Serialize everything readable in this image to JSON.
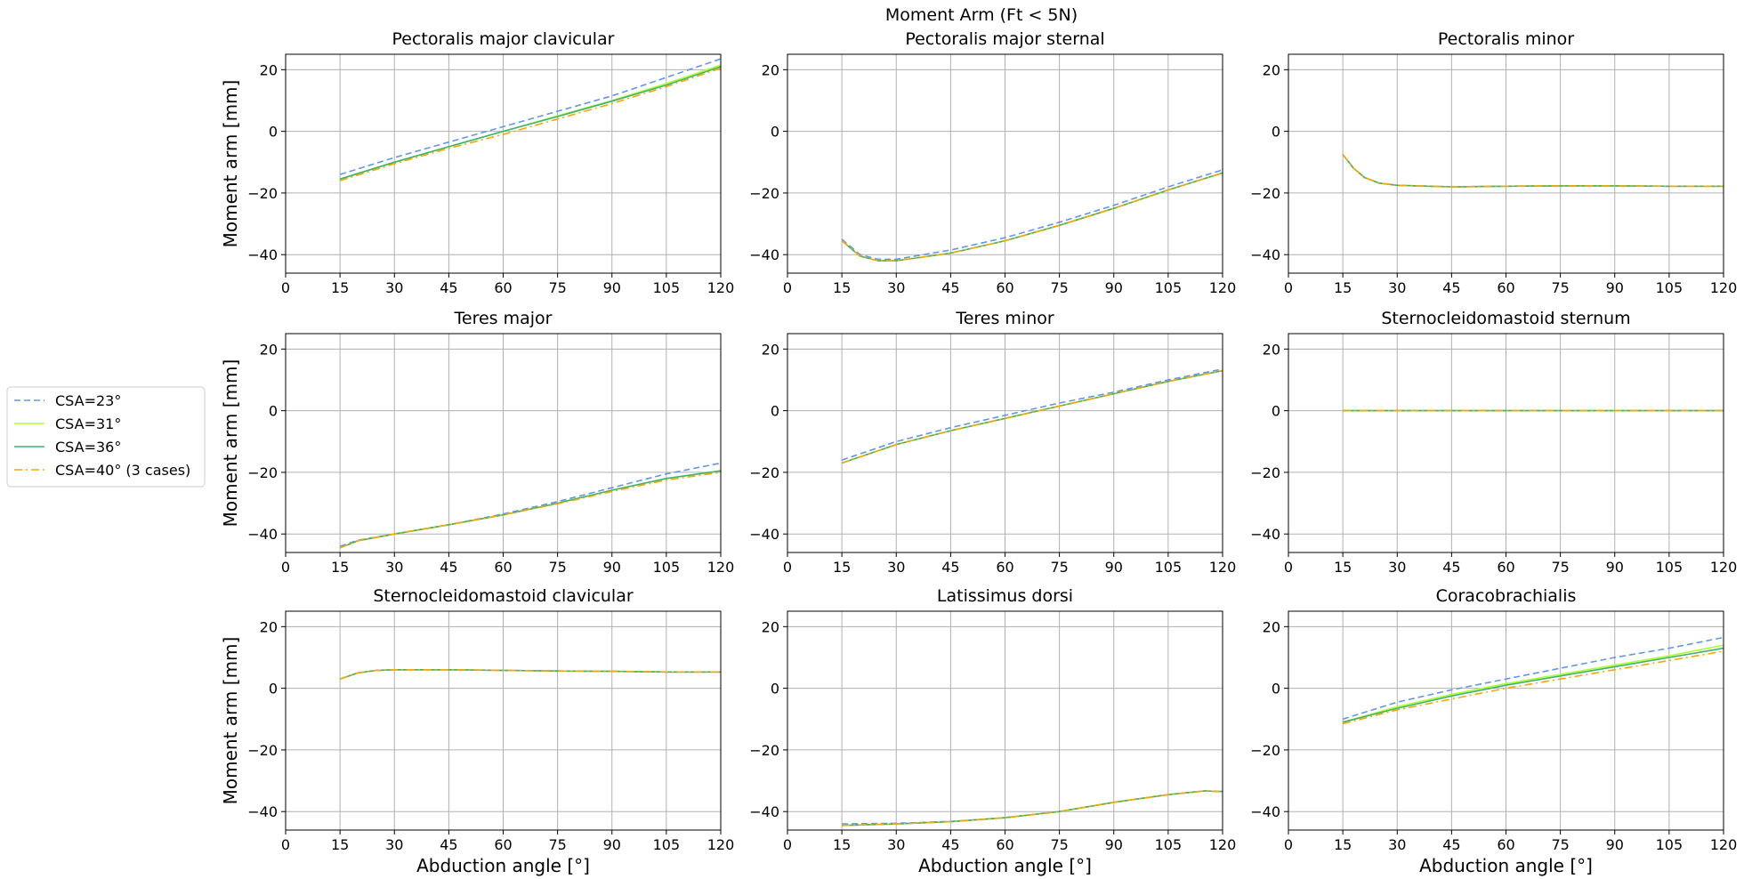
{
  "figure": {
    "suptitle": "Moment Arm (Ft < 5N)"
  },
  "legend": {
    "position": "left",
    "entries": [
      {
        "label": "CSA=23°",
        "color": "#6495ED",
        "style": "dashed"
      },
      {
        "label": "CSA=31°",
        "color": "#ADFF2F",
        "style": "solid"
      },
      {
        "label": "CSA=36°",
        "color": "#3CB371",
        "style": "solid"
      },
      {
        "label": "CSA=40° (3 cases)",
        "color": "#FFA500",
        "style": "dashdot"
      }
    ]
  },
  "chart_data": [
    {
      "type": "line",
      "title": "Pectoralis major clavicular",
      "xlabel": "",
      "ylabel": "Moment arm [mm]",
      "xlim": [
        0,
        120
      ],
      "ylim": [
        -46,
        25
      ],
      "xticks": [
        "0",
        "15",
        "30",
        "45",
        "60",
        "75",
        "90",
        "105",
        "120"
      ],
      "yticks": [
        "20",
        "0",
        "−20",
        "−40"
      ],
      "grid": true,
      "x": [
        15,
        30,
        45,
        60,
        75,
        90,
        105,
        120
      ],
      "series": [
        {
          "name": "CSA=23°",
          "values": [
            -14,
            -8.5,
            -3.5,
            1.5,
            6.5,
            11.5,
            17.5,
            23.5
          ]
        },
        {
          "name": "CSA=31°",
          "values": [
            -15.5,
            -10,
            -5,
            0,
            5,
            10,
            15.5,
            21.5
          ]
        },
        {
          "name": "CSA=36°",
          "values": [
            -15.5,
            -10,
            -5,
            0,
            4.8,
            9.8,
            15,
            21
          ]
        },
        {
          "name": "CSA=40° (3 cases)",
          "values": [
            -16,
            -10.5,
            -5.5,
            -1,
            4,
            9,
            14.5,
            20.5
          ]
        }
      ]
    },
    {
      "type": "line",
      "title": "Pectoralis major sternal",
      "xlabel": "",
      "ylabel": "",
      "xlim": [
        0,
        120
      ],
      "ylim": [
        -46,
        25
      ],
      "xticks": [
        "0",
        "15",
        "30",
        "45",
        "60",
        "75",
        "90",
        "105",
        "120"
      ],
      "yticks": [
        "20",
        "0",
        "−20",
        "−40"
      ],
      "grid": true,
      "x": [
        15,
        20,
        25,
        30,
        45,
        60,
        75,
        90,
        105,
        120
      ],
      "series": [
        {
          "name": "CSA=23°",
          "values": [
            -35,
            -40,
            -41.5,
            -41.5,
            -38.5,
            -34.5,
            -29.5,
            -24,
            -18,
            -12.5
          ]
        },
        {
          "name": "CSA=31°",
          "values": [
            -35.5,
            -40.5,
            -42,
            -42,
            -39.5,
            -35.5,
            -30.5,
            -25,
            -19,
            -13.5
          ]
        },
        {
          "name": "CSA=36°",
          "values": [
            -35.5,
            -40.5,
            -42,
            -42,
            -39.5,
            -35.5,
            -30.5,
            -25,
            -19,
            -13.5
          ]
        },
        {
          "name": "CSA=40° (3 cases)",
          "values": [
            -35.5,
            -40.5,
            -42,
            -42,
            -39.5,
            -35.5,
            -30.5,
            -25,
            -19,
            -13.5
          ]
        }
      ]
    },
    {
      "type": "line",
      "title": "Pectoralis minor",
      "xlabel": "",
      "ylabel": "",
      "xlim": [
        0,
        120
      ],
      "ylim": [
        -46,
        25
      ],
      "xticks": [
        "0",
        "15",
        "30",
        "45",
        "60",
        "75",
        "90",
        "105",
        "120"
      ],
      "yticks": [
        "20",
        "0",
        "−20",
        "−40"
      ],
      "grid": true,
      "x": [
        15,
        18,
        21,
        25,
        30,
        45,
        60,
        75,
        90,
        105,
        120
      ],
      "series": [
        {
          "name": "CSA=23°",
          "values": [
            -7.5,
            -12,
            -15,
            -16.8,
            -17.5,
            -18,
            -17.8,
            -17.7,
            -17.7,
            -17.8,
            -17.8
          ]
        },
        {
          "name": "CSA=31°",
          "values": [
            -7.5,
            -12,
            -15,
            -16.8,
            -17.5,
            -18,
            -17.8,
            -17.7,
            -17.7,
            -17.8,
            -17.8
          ]
        },
        {
          "name": "CSA=36°",
          "values": [
            -7.5,
            -12,
            -15,
            -16.8,
            -17.5,
            -18,
            -17.8,
            -17.7,
            -17.7,
            -17.8,
            -17.8
          ]
        },
        {
          "name": "CSA=40° (3 cases)",
          "values": [
            -7.5,
            -12,
            -15,
            -16.8,
            -17.5,
            -18,
            -17.8,
            -17.7,
            -17.7,
            -17.8,
            -17.8
          ]
        }
      ]
    },
    {
      "type": "line",
      "title": "Teres major",
      "xlabel": "",
      "ylabel": "Moment arm [mm]",
      "xlim": [
        0,
        120
      ],
      "ylim": [
        -46,
        25
      ],
      "xticks": [
        "0",
        "15",
        "30",
        "45",
        "60",
        "75",
        "90",
        "105",
        "120"
      ],
      "yticks": [
        "20",
        "0",
        "−20",
        "−40"
      ],
      "grid": true,
      "x": [
        15,
        20,
        30,
        45,
        60,
        75,
        90,
        105,
        120
      ],
      "series": [
        {
          "name": "CSA=23°",
          "values": [
            -44,
            -42,
            -40,
            -37,
            -33.5,
            -29.5,
            -25,
            -20.5,
            -17
          ]
        },
        {
          "name": "CSA=31°",
          "values": [
            -44.5,
            -42.2,
            -40,
            -37,
            -33.8,
            -30,
            -25.8,
            -22,
            -19.5
          ]
        },
        {
          "name": "CSA=36°",
          "values": [
            -44.5,
            -42.2,
            -40,
            -37,
            -33.8,
            -30,
            -25.8,
            -22,
            -19.5
          ]
        },
        {
          "name": "CSA=40° (3 cases)",
          "values": [
            -44.5,
            -42.2,
            -40,
            -37,
            -33.8,
            -30.2,
            -26.2,
            -22.5,
            -20
          ]
        }
      ]
    },
    {
      "type": "line",
      "title": "Teres minor",
      "xlabel": "",
      "ylabel": "",
      "xlim": [
        0,
        120
      ],
      "ylim": [
        -46,
        25
      ],
      "xticks": [
        "0",
        "15",
        "30",
        "45",
        "60",
        "75",
        "90",
        "105",
        "120"
      ],
      "yticks": [
        "20",
        "0",
        "−20",
        "−40"
      ],
      "grid": true,
      "x": [
        15,
        30,
        45,
        60,
        75,
        90,
        105,
        120
      ],
      "series": [
        {
          "name": "CSA=23°",
          "values": [
            -16,
            -10,
            -5.5,
            -1.5,
            2.5,
            6,
            10,
            13.5
          ]
        },
        {
          "name": "CSA=31°",
          "values": [
            -17,
            -11,
            -6.5,
            -2.5,
            1.5,
            5.5,
            9.5,
            13
          ]
        },
        {
          "name": "CSA=36°",
          "values": [
            -17,
            -11,
            -6.5,
            -2.5,
            1.5,
            5.5,
            9.5,
            13
          ]
        },
        {
          "name": "CSA=40° (3 cases)",
          "values": [
            -17,
            -11,
            -6.5,
            -2.5,
            1.5,
            5.5,
            9.5,
            13
          ]
        }
      ]
    },
    {
      "type": "line",
      "title": "Sternocleidomastoid sternum",
      "xlabel": "",
      "ylabel": "",
      "xlim": [
        0,
        120
      ],
      "ylim": [
        -46,
        25
      ],
      "xticks": [
        "0",
        "15",
        "30",
        "45",
        "60",
        "75",
        "90",
        "105",
        "120"
      ],
      "yticks": [
        "20",
        "0",
        "−20",
        "−40"
      ],
      "grid": true,
      "x": [
        15,
        120
      ],
      "series": [
        {
          "name": "CSA=23°",
          "values": [
            0,
            0
          ]
        },
        {
          "name": "CSA=31°",
          "values": [
            0,
            0
          ]
        },
        {
          "name": "CSA=36°",
          "values": [
            0,
            0
          ]
        },
        {
          "name": "CSA=40° (3 cases)",
          "values": [
            0,
            0
          ]
        }
      ]
    },
    {
      "type": "line",
      "title": "Sternocleidomastoid clavicular",
      "xlabel": "Abduction angle [°]",
      "ylabel": "Moment arm [mm]",
      "xlim": [
        0,
        120
      ],
      "ylim": [
        -46,
        25
      ],
      "xticks": [
        "0",
        "15",
        "30",
        "45",
        "60",
        "75",
        "90",
        "105",
        "120"
      ],
      "yticks": [
        "20",
        "0",
        "−20",
        "−40"
      ],
      "grid": true,
      "x": [
        15,
        20,
        25,
        30,
        45,
        60,
        75,
        90,
        105,
        120
      ],
      "series": [
        {
          "name": "CSA=23°",
          "values": [
            3,
            5,
            5.8,
            6,
            6,
            5.8,
            5.6,
            5.5,
            5.3,
            5.3
          ]
        },
        {
          "name": "CSA=31°",
          "values": [
            3,
            5,
            5.8,
            6,
            6,
            5.8,
            5.6,
            5.5,
            5.3,
            5.3
          ]
        },
        {
          "name": "CSA=36°",
          "values": [
            3,
            5,
            5.8,
            6,
            6,
            5.8,
            5.6,
            5.5,
            5.3,
            5.3
          ]
        },
        {
          "name": "CSA=40° (3 cases)",
          "values": [
            3,
            5,
            5.8,
            6,
            6,
            5.8,
            5.6,
            5.5,
            5.3,
            5.3
          ]
        }
      ]
    },
    {
      "type": "line",
      "title": "Latissimus dorsi",
      "xlabel": "Abduction angle [°]",
      "ylabel": "",
      "xlim": [
        0,
        120
      ],
      "ylim": [
        -46,
        25
      ],
      "xticks": [
        "0",
        "15",
        "30",
        "45",
        "60",
        "75",
        "90",
        "105",
        "120"
      ],
      "yticks": [
        "20",
        "0",
        "−20",
        "−40"
      ],
      "grid": true,
      "x": [
        15,
        30,
        45,
        60,
        75,
        90,
        105,
        115,
        120
      ],
      "series": [
        {
          "name": "CSA=23°",
          "values": [
            -44,
            -43.8,
            -43.2,
            -42,
            -40,
            -37,
            -34.5,
            -33.3,
            -33.5
          ]
        },
        {
          "name": "CSA=31°",
          "values": [
            -44.5,
            -44,
            -43.3,
            -42,
            -40,
            -37,
            -34.5,
            -33.3,
            -33.5
          ]
        },
        {
          "name": "CSA=36°",
          "values": [
            -44.5,
            -44,
            -43.3,
            -42,
            -40,
            -37,
            -34.5,
            -33.3,
            -33.5
          ]
        },
        {
          "name": "CSA=40° (3 cases)",
          "values": [
            -44.5,
            -44,
            -43.3,
            -42,
            -40,
            -37,
            -34.5,
            -33.3,
            -33.5
          ]
        }
      ]
    },
    {
      "type": "line",
      "title": "Coracobrachialis",
      "xlabel": "Abduction angle [°]",
      "ylabel": "",
      "xlim": [
        0,
        120
      ],
      "ylim": [
        -46,
        25
      ],
      "xticks": [
        "0",
        "15",
        "30",
        "45",
        "60",
        "75",
        "90",
        "105",
        "120"
      ],
      "yticks": [
        "20",
        "0",
        "−20",
        "−40"
      ],
      "grid": true,
      "x": [
        15,
        30,
        45,
        60,
        75,
        90,
        105,
        120
      ],
      "series": [
        {
          "name": "CSA=23°",
          "values": [
            -10,
            -4.5,
            -0.5,
            3,
            6.5,
            10,
            13,
            16.5
          ]
        },
        {
          "name": "CSA=31°",
          "values": [
            -11,
            -6,
            -2,
            1.5,
            4.5,
            7.5,
            10.5,
            14
          ]
        },
        {
          "name": "CSA=36°",
          "values": [
            -11,
            -6.5,
            -2.5,
            1,
            4,
            7,
            10,
            13
          ]
        },
        {
          "name": "CSA=40° (3 cases)",
          "values": [
            -11.5,
            -7,
            -3.5,
            0,
            3,
            6,
            9,
            12
          ]
        }
      ]
    }
  ]
}
